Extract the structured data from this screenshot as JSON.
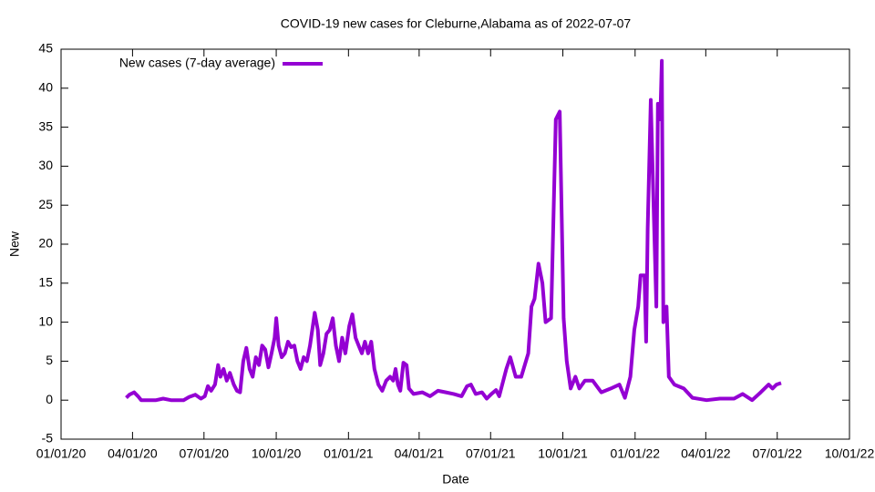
{
  "chart_data": {
    "type": "line",
    "title": "COVID-19 new cases for Cleburne,Alabama as of 2022-07-07",
    "xlabel": "Date",
    "ylabel": "New",
    "legend": "top-left",
    "xlim": [
      "2020-01-01",
      "2022-10-01"
    ],
    "xticks": [
      {
        "value": "2020-01-01",
        "label": "01/01/20"
      },
      {
        "value": "2020-04-01",
        "label": "04/01/20"
      },
      {
        "value": "2020-07-01",
        "label": "07/01/20"
      },
      {
        "value": "2020-10-01",
        "label": "10/01/20"
      },
      {
        "value": "2021-01-01",
        "label": "01/01/21"
      },
      {
        "value": "2021-04-01",
        "label": "04/01/21"
      },
      {
        "value": "2021-07-01",
        "label": "07/01/21"
      },
      {
        "value": "2021-10-01",
        "label": "10/01/21"
      },
      {
        "value": "2022-01-01",
        "label": "01/01/22"
      },
      {
        "value": "2022-04-01",
        "label": "04/01/22"
      },
      {
        "value": "2022-07-01",
        "label": "07/01/22"
      },
      {
        "value": "2022-10-01",
        "label": "10/01/22"
      }
    ],
    "ylim": [
      -5,
      45
    ],
    "yticks": [
      -5,
      0,
      5,
      10,
      15,
      20,
      25,
      30,
      35,
      40,
      45
    ],
    "x": [
      "2020-03-24",
      "2020-03-28",
      "2020-04-03",
      "2020-04-08",
      "2020-04-12",
      "2020-05-01",
      "2020-05-10",
      "2020-05-20",
      "2020-06-05",
      "2020-06-12",
      "2020-06-20",
      "2020-06-27",
      "2020-07-02",
      "2020-07-06",
      "2020-07-10",
      "2020-07-15",
      "2020-07-19",
      "2020-07-22",
      "2020-07-26",
      "2020-07-30",
      "2020-08-03",
      "2020-08-08",
      "2020-08-12",
      "2020-08-16",
      "2020-08-20",
      "2020-08-24",
      "2020-08-28",
      "2020-09-01",
      "2020-09-05",
      "2020-09-09",
      "2020-09-13",
      "2020-09-17",
      "2020-09-21",
      "2020-09-25",
      "2020-09-29",
      "2020-10-01",
      "2020-10-04",
      "2020-10-08",
      "2020-10-12",
      "2020-10-16",
      "2020-10-20",
      "2020-10-24",
      "2020-10-28",
      "2020-11-01",
      "2020-11-05",
      "2020-11-09",
      "2020-11-13",
      "2020-11-19",
      "2020-11-23",
      "2020-11-26",
      "2020-11-30",
      "2020-12-04",
      "2020-12-08",
      "2020-12-12",
      "2020-12-16",
      "2020-12-20",
      "2020-12-24",
      "2020-12-28",
      "2021-01-02",
      "2021-01-06",
      "2021-01-10",
      "2021-01-14",
      "2021-01-18",
      "2021-01-22",
      "2021-01-26",
      "2021-01-30",
      "2021-02-03",
      "2021-02-08",
      "2021-02-13",
      "2021-02-18",
      "2021-02-23",
      "2021-02-27",
      "2021-03-02",
      "2021-03-05",
      "2021-03-08",
      "2021-03-12",
      "2021-03-16",
      "2021-03-19",
      "2021-03-25",
      "2021-04-05",
      "2021-04-15",
      "2021-04-25",
      "2021-05-05",
      "2021-05-15",
      "2021-05-25",
      "2021-06-01",
      "2021-06-06",
      "2021-06-12",
      "2021-06-20",
      "2021-06-26",
      "2021-07-02",
      "2021-07-08",
      "2021-07-12",
      "2021-07-21",
      "2021-07-26",
      "2021-08-02",
      "2021-08-09",
      "2021-08-18",
      "2021-08-22",
      "2021-08-26",
      "2021-08-31",
      "2021-09-05",
      "2021-09-09",
      "2021-09-16",
      "2021-09-22",
      "2021-09-27",
      "2021-10-02",
      "2021-10-06",
      "2021-10-11",
      "2021-10-17",
      "2021-10-22",
      "2021-10-29",
      "2021-11-08",
      "2021-11-19",
      "2021-12-01",
      "2021-12-12",
      "2021-12-19",
      "2021-12-26",
      "2021-12-31",
      "2022-01-05",
      "2022-01-08",
      "2022-01-13",
      "2022-01-15",
      "2022-01-17",
      "2022-01-21",
      "2022-01-24",
      "2022-01-28",
      "2022-01-30",
      "2022-02-02",
      "2022-02-04",
      "2022-02-06",
      "2022-02-10",
      "2022-02-13",
      "2022-02-20",
      "2022-03-04",
      "2022-03-15",
      "2022-04-02",
      "2022-04-19",
      "2022-05-07",
      "2022-05-18",
      "2022-05-30",
      "2022-06-10",
      "2022-06-20",
      "2022-06-25",
      "2022-06-30",
      "2022-07-06"
    ],
    "series": [
      {
        "name": "New cases (7-day average)",
        "color": "#9400d3",
        "values": [
          0.3,
          0.7,
          1.0,
          0.5,
          0,
          0,
          0.2,
          0,
          0,
          0.4,
          0.7,
          0.2,
          0.5,
          1.8,
          1.2,
          2.0,
          4.5,
          3.0,
          4.0,
          2.5,
          3.5,
          2.0,
          1.2,
          1.0,
          5.0,
          6.7,
          4.0,
          3.0,
          5.5,
          4.5,
          7.0,
          6.5,
          4.2,
          6.0,
          8.0,
          10.5,
          7.0,
          5.5,
          6.0,
          7.5,
          6.8,
          7.0,
          5.0,
          4.0,
          5.5,
          5.0,
          7.0,
          11.2,
          9.0,
          4.5,
          6.0,
          8.5,
          9.0,
          10.5,
          7.0,
          5.0,
          8.0,
          6.0,
          9.5,
          11.0,
          8.0,
          7.0,
          6.0,
          7.5,
          6.0,
          7.5,
          4.0,
          2.0,
          1.2,
          2.5,
          3.0,
          2.5,
          4.0,
          2.0,
          1.2,
          4.8,
          4.5,
          1.5,
          0.8,
          1.0,
          0.5,
          1.2,
          1.0,
          0.8,
          0.5,
          1.8,
          2.0,
          0.8,
          1.0,
          0.2,
          0.8,
          1.3,
          0.5,
          4.0,
          5.5,
          3.0,
          3.0,
          6.0,
          12.0,
          13.0,
          17.5,
          15.0,
          10.0,
          10.5,
          36.0,
          37.0,
          10.5,
          5.0,
          1.5,
          3.0,
          1.5,
          2.5,
          2.5,
          1.0,
          1.5,
          2.0,
          0.3,
          3.0,
          9.0,
          12.0,
          16.0,
          16.0,
          7.5,
          22.0,
          38.5,
          27.0,
          12.0,
          38.0,
          36.0,
          43.5,
          10.0,
          12.0,
          3.0,
          2.0,
          1.5,
          0.3,
          0.0,
          0.2,
          0.2,
          0.8,
          0.0,
          1.0,
          2.0,
          1.5,
          2.0,
          2.2
        ]
      }
    ]
  }
}
